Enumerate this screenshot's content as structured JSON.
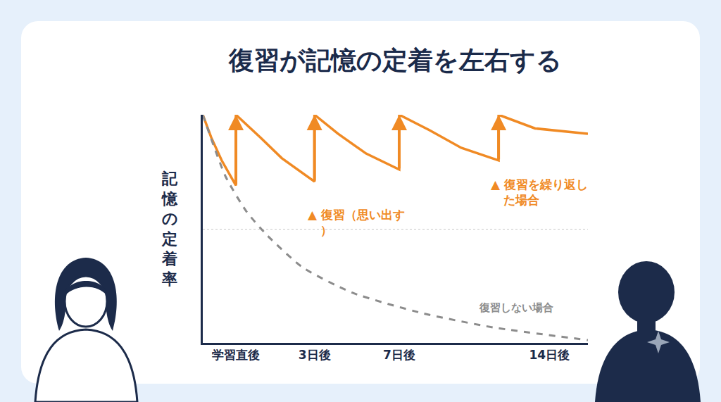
{
  "chart_data": {
    "type": "line",
    "title": "復習が記憶の定着を左右する",
    "y_label": "記憶の定着率",
    "xlim": [
      0,
      100
    ],
    "xticks": [
      {
        "value": 8.6,
        "label": "学習直後"
      },
      {
        "value": 29,
        "label": "3日後"
      },
      {
        "value": 51,
        "label": "7日後"
      },
      {
        "value": 90,
        "label": "14日後"
      }
    ],
    "ylim": [
      0,
      100
    ],
    "yticks": [
      0,
      50,
      100
    ],
    "tick_labels": "x",
    "grid": true,
    "series": [
      {
        "color": "#f08a24",
        "line_style": "solid",
        "marker": "arrow",
        "x": [
          0,
          2.2,
          4.9,
          8.6,
          8.6,
          15,
          20.5,
          29,
          29,
          35.1,
          42.4,
          51,
          51,
          58.9,
          67.1,
          76.8,
          76.8,
          86.3,
          100
        ],
        "values": [
          100,
          90,
          80,
          69,
          100,
          90,
          81,
          70.7,
          100,
          91.7,
          83,
          76,
          100,
          93.2,
          85.5,
          80,
          100,
          94,
          91.7
        ]
      },
      {
        "color": "#8c8c8c",
        "line_style": "dashed",
        "x": [
          0,
          5.9,
          11.3,
          16.8,
          26,
          38.8,
          57,
          75.3,
          100
        ],
        "values": [
          100,
          73,
          57.7,
          47,
          33,
          22,
          13,
          6.8,
          1.2
        ]
      }
    ],
    "annotations": [
      {
        "text": "▲ 復習（思い出す）",
        "x": 26.9,
        "y": 60,
        "color": "#f08a24"
      },
      {
        "text": "▲ 復習を繰り返した場合",
        "x": 74.4,
        "y": 73,
        "color": "#f08a24"
      },
      {
        "text": "復習しない場合",
        "x": 71.3,
        "y": 15.4,
        "color": "#8c8c8c"
      }
    ]
  }
}
